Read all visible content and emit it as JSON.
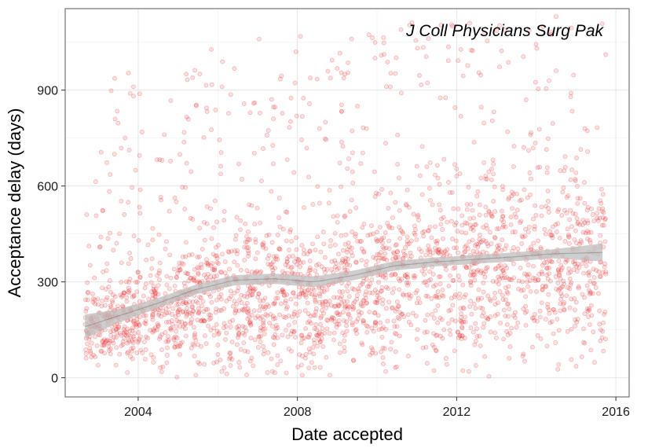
{
  "chart_data": {
    "type": "scatter",
    "title": "",
    "annotation": "J Coll Physicians Surg Pak",
    "xlabel": "Date accepted",
    "ylabel": "Acceptance delay (days)",
    "x_ticks": [
      "2004",
      "2008",
      "2012",
      "2016"
    ],
    "y_ticks": [
      "0",
      "300",
      "600",
      "900"
    ],
    "xlim": [
      "2002-03-01",
      "2016-05-01"
    ],
    "ylim": [
      -60,
      1155
    ],
    "grid": true,
    "legend": "none",
    "point_color": "#e8272b",
    "point_opacity": 0.15,
    "smooth_color": "#595959",
    "smooth_band_color": "#bdbdbd",
    "points_note_count": 2600,
    "smooth_trend": {
      "x": [
        "2002-09-01",
        "2003-06-01",
        "2004-06-01",
        "2005-06-01",
        "2006-06-01",
        "2007-06-01",
        "2008-06-01",
        "2009-06-01",
        "2010-06-01",
        "2011-06-01",
        "2012-06-01",
        "2013-06-01",
        "2014-06-01",
        "2015-09-01"
      ],
      "y": [
        160,
        190,
        230,
        275,
        305,
        310,
        300,
        320,
        350,
        362,
        370,
        378,
        388,
        392
      ],
      "band_halfwidth": [
        38,
        22,
        16,
        15,
        16,
        16,
        17,
        15,
        15,
        14,
        14,
        14,
        14,
        28
      ]
    },
    "density_profile": {
      "x": [
        "2002-09-01",
        "2003-06-01",
        "2004-06-01",
        "2005-06-01",
        "2006-06-01",
        "2007-06-01",
        "2008-06-01",
        "2009-06-01",
        "2010-06-01",
        "2011-06-01",
        "2012-06-01",
        "2013-06-01",
        "2014-06-01",
        "2015-09-01"
      ],
      "median": [
        150,
        170,
        190,
        230,
        260,
        260,
        240,
        270,
        300,
        320,
        330,
        340,
        350,
        360
      ],
      "spread": [
        110,
        130,
        160,
        200,
        230,
        230,
        220,
        230,
        250,
        260,
        270,
        270,
        280,
        290
      ],
      "max": [
        500,
        980,
        960,
        1000,
        1080,
        1070,
        1120,
        1110,
        1100,
        1130,
        1130,
        1130,
        1150,
        1140
      ]
    }
  }
}
